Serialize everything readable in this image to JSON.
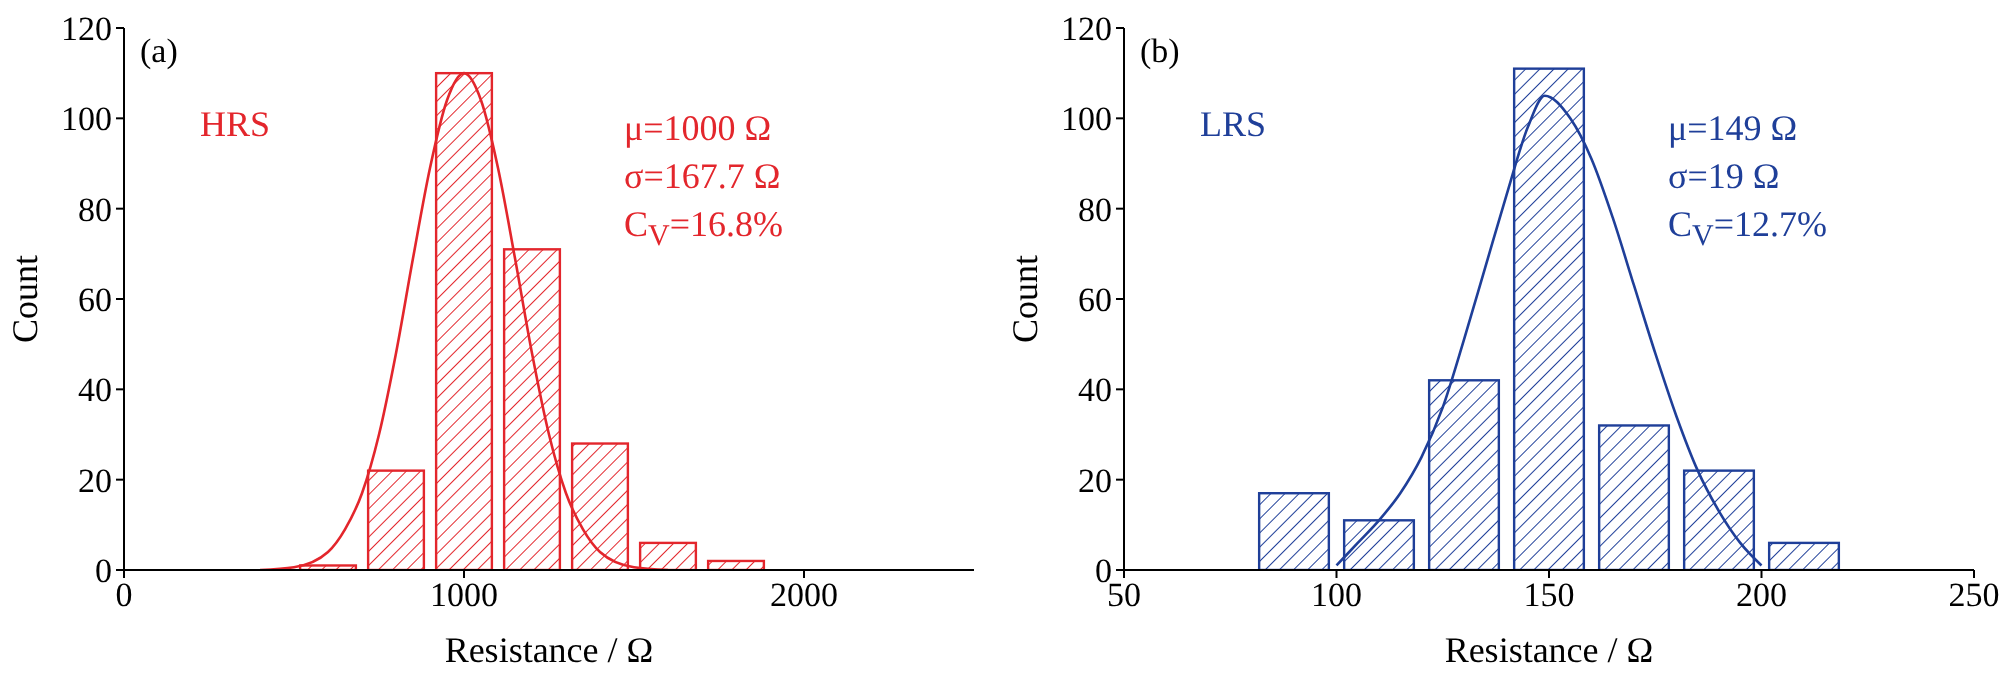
{
  "chart_data": [
    {
      "type": "histogram",
      "xlabel": "Resistance / Ω",
      "ylabel": "Count",
      "xlim": [
        0,
        2500
      ],
      "xticks": [
        0,
        1000,
        2000
      ],
      "ylim": [
        0,
        120
      ],
      "yticks": [
        0,
        20,
        40,
        60,
        80,
        100,
        120
      ],
      "grid": false,
      "legend": false,
      "series": [
        {
          "color": "#e3262c",
          "bins": [
            500,
            700,
            900,
            1100,
            1300,
            1500,
            1700,
            1900
          ],
          "values": [
            1,
            22,
            110,
            71,
            28,
            6,
            2
          ]
        },
        {
          "type": "line",
          "color": "#e3262c",
          "x": [
            400,
            500,
            600,
            650,
            700,
            750,
            800,
            850,
            900,
            950,
            1000,
            1050,
            1100,
            1150,
            1200,
            1250,
            1300,
            1350,
            1400,
            1500,
            1600
          ],
          "values": [
            0,
            0.6,
            4,
            9,
            17,
            30,
            48,
            69,
            89,
            104,
            110,
            104,
            89,
            69,
            48,
            30,
            17,
            9,
            4,
            0.6,
            0
          ]
        }
      ],
      "annotations": [
        "(a)",
        "HRS",
        "μ=1000 Ω",
        "σ=167.7 Ω",
        "C$_{V}$=16.8%"
      ]
    },
    {
      "type": "histogram",
      "xlabel": "Resistance / Ω",
      "ylabel": "Count",
      "xlim": [
        50,
        250
      ],
      "xticks": [
        50,
        100,
        150,
        200,
        250
      ],
      "ylim": [
        0,
        120
      ],
      "yticks": [
        0,
        20,
        40,
        60,
        80,
        100,
        120
      ],
      "grid": false,
      "legend": false,
      "series": [
        {
          "color": "#1f3f99",
          "bins": [
            80,
            100,
            120,
            140,
            160,
            180,
            200,
            220
          ],
          "values": [
            17,
            11,
            42,
            111,
            32,
            22,
            6
          ]
        },
        {
          "type": "line",
          "color": "#1f3f99",
          "x": [
            100,
            105,
            110,
            115,
            120,
            125,
            130,
            135,
            140,
            145,
            149,
            155,
            160,
            165,
            170,
            175,
            180,
            185,
            190,
            195,
            200
          ],
          "values": [
            1,
            6,
            11,
            17,
            25,
            36,
            51,
            67,
            83,
            98,
            105,
            100,
            91,
            78,
            63,
            48,
            34,
            22,
            13,
            6,
            1
          ]
        }
      ],
      "annotations": [
        "(b)",
        "LRS",
        "μ=149 Ω",
        "σ=19 Ω",
        "C$_{V}$=12.7%"
      ]
    }
  ]
}
